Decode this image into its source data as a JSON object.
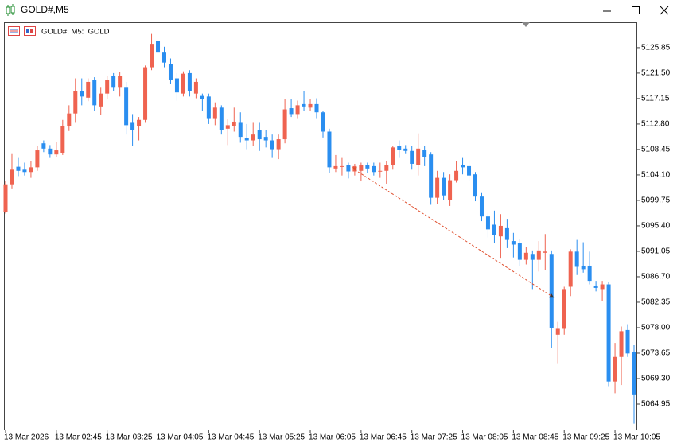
{
  "window": {
    "title": "GOLD#,M5"
  },
  "chart_data": {
    "type": "candlestick",
    "legend": "GOLD#, M5:  GOLD",
    "categories": [
      "13 Mar 2026",
      null,
      null,
      null,
      null,
      null,
      null,
      null,
      "13 Mar 02:45",
      null,
      null,
      null,
      null,
      null,
      null,
      null,
      "13 Mar 03:25",
      null,
      null,
      null,
      null,
      null,
      null,
      null,
      "13 Mar 04:05",
      null,
      null,
      null,
      null,
      null,
      null,
      null,
      "13 Mar 04:45",
      null,
      null,
      null,
      null,
      null,
      null,
      null,
      "13 Mar 05:25",
      null,
      null,
      null,
      null,
      null,
      null,
      null,
      "13 Mar 06:05",
      null,
      null,
      null,
      null,
      null,
      null,
      null,
      "13 Mar 06:45",
      null,
      null,
      null,
      null,
      null,
      null,
      null,
      "13 Mar 07:25",
      null,
      null,
      null,
      null,
      null,
      null,
      null,
      "13 Mar 08:05",
      null,
      null,
      null,
      null,
      null,
      null,
      null,
      "13 Mar 08:45",
      null,
      null,
      null,
      null,
      null,
      null,
      null,
      "13 Mar 09:25",
      null,
      null,
      null,
      null,
      null,
      null,
      null,
      "13 Mar 10:05",
      null,
      null,
      null
    ],
    "open": [
      5097.7,
      5102.5,
      5105.5,
      5105.0,
      5104.6,
      5105.4,
      5109.5,
      5108.6,
      5107.6,
      5107.9,
      5112.4,
      5114.6,
      5118.4,
      5117.3,
      5120.4,
      5115.8,
      5118.0,
      5121.0,
      5119.0,
      5119.0,
      5113.0,
      5112.5,
      5113.5,
      5122.5,
      5127.0,
      5125.0,
      5123.0,
      5120.6,
      5118.0,
      5121.5,
      5118.0,
      5117.6,
      5117.5,
      5113.8,
      5115.6,
      5112.0,
      5112.4,
      5113.0,
      5110.4,
      5110.0,
      5111.8,
      5110.6,
      5110.0,
      5108.5,
      5110.2,
      5115.5,
      5114.5,
      5116.2,
      5115.6,
      5116.2,
      5114.8,
      5111.5,
      5105.2,
      5105.5,
      5105.8,
      5104.7,
      5104.8,
      5105.8,
      5105.6,
      5104.8,
      5104.8,
      5105.8,
      5109.0,
      5108.6,
      5108.2,
      5105.8,
      5108.4,
      5107.6,
      5100.2,
      5103.6,
      5099.8,
      5103.2,
      5105.8,
      5105.6,
      5104.2,
      5100.4,
      5097.0,
      5095.6,
      5093.6,
      5095.0,
      5092.8,
      5092.4,
      5089.6,
      5090.6,
      5089.6,
      5090.8,
      5090.6,
      5076.8,
      5077.8,
      5085.0,
      5091.0,
      5088.6,
      5088.6,
      5085.2,
      5084.6,
      5085.4,
      5068.8,
      5073.0,
      5077.6,
      5073.8
    ],
    "high": [
      5103.0,
      5107.8,
      5107.0,
      5106.2,
      5106.5,
      5109.0,
      5110.0,
      5109.2,
      5109.8,
      5113.5,
      5116.0,
      5120.6,
      5120.6,
      5120.6,
      5120.8,
      5119.0,
      5121.0,
      5121.5,
      5121.7,
      5120.0,
      5114.5,
      5114.0,
      5122.8,
      5128.2,
      5127.6,
      5126.0,
      5124.0,
      5121.5,
      5121.8,
      5122.0,
      5120.6,
      5118.0,
      5118.0,
      5116.5,
      5116.0,
      5113.6,
      5115.6,
      5114.8,
      5112.8,
      5113.0,
      5113.0,
      5111.8,
      5111.0,
      5111.0,
      5117.0,
      5117.0,
      5116.8,
      5118.5,
      5117.0,
      5117.2,
      5115.0,
      5112.0,
      5107.5,
      5107.0,
      5106.2,
      5106.0,
      5106.2,
      5106.2,
      5106.2,
      5106.2,
      5106.4,
      5109.0,
      5110.0,
      5109.2,
      5109.0,
      5111.2,
      5109.0,
      5108.0,
      5104.8,
      5104.6,
      5104.2,
      5106.5,
      5107.0,
      5106.6,
      5104.6,
      5101.0,
      5097.6,
      5098.0,
      5097.4,
      5096.6,
      5094.2,
      5093.2,
      5091.8,
      5091.2,
      5092.8,
      5094.0,
      5091.2,
      5079.0,
      5085.0,
      5091.4,
      5093.0,
      5092.6,
      5091.0,
      5086.0,
      5086.0,
      5085.8,
      5075.4,
      5078.2,
      5078.6,
      5075.0
    ],
    "low": [
      5097.5,
      5101.8,
      5103.9,
      5104.0,
      5103.6,
      5104.8,
      5108.0,
      5107.0,
      5107.2,
      5107.5,
      5111.6,
      5113.0,
      5116.0,
      5116.7,
      5115.0,
      5114.3,
      5117.0,
      5118.5,
      5117.5,
      5111.0,
      5109.0,
      5110.0,
      5113.0,
      5122.0,
      5124.0,
      5122.5,
      5119.6,
      5116.8,
      5117.5,
      5117.5,
      5117.2,
      5115.0,
      5112.8,
      5112.6,
      5111.0,
      5109.2,
      5111.5,
      5109.6,
      5108.5,
      5109.0,
      5108.2,
      5108.8,
      5107.0,
      5106.8,
      5109.5,
      5114.0,
      5113.8,
      5115.0,
      5115.0,
      5113.8,
      5110.5,
      5104.5,
      5104.6,
      5104.0,
      5103.5,
      5104.0,
      5103.0,
      5104.4,
      5104.0,
      5103.6,
      5102.6,
      5105.0,
      5107.0,
      5107.8,
      5105.0,
      5104.0,
      5105.6,
      5099.0,
      5099.2,
      5099.8,
      5098.8,
      5102.8,
      5104.2,
      5103.0,
      5099.6,
      5096.2,
      5093.4,
      5092.4,
      5089.8,
      5091.6,
      5090.0,
      5088.5,
      5088.8,
      5084.6,
      5087.6,
      5087.8,
      5074.6,
      5071.8,
      5076.8,
      5083.4,
      5087.0,
      5087.4,
      5085.4,
      5084.2,
      5082.6,
      5068.0,
      5066.8,
      5068.2,
      5073.0,
      5061.6
    ],
    "close": [
      5102.5,
      5105.0,
      5104.8,
      5104.6,
      5105.4,
      5108.3,
      5108.6,
      5107.6,
      5108.3,
      5112.4,
      5114.6,
      5118.4,
      5117.5,
      5120.0,
      5116.0,
      5118.0,
      5120.4,
      5119.0,
      5121.0,
      5112.6,
      5111.8,
      5113.5,
      5122.5,
      5126.5,
      5125.0,
      5123.3,
      5120.4,
      5118.2,
      5121.4,
      5118.4,
      5120.0,
      5117.0,
      5113.8,
      5115.6,
      5111.8,
      5112.6,
      5113.2,
      5110.6,
      5110.0,
      5111.0,
      5110.2,
      5110.0,
      5108.5,
      5110.2,
      5115.3,
      5114.5,
      5116.0,
      5115.8,
      5116.2,
      5114.8,
      5111.5,
      5105.4,
      5105.6,
      5105.6,
      5104.7,
      5105.6,
      5105.8,
      5105.2,
      5104.6,
      5104.8,
      5105.8,
      5108.8,
      5108.4,
      5108.2,
      5106.0,
      5108.6,
      5107.2,
      5100.2,
      5103.6,
      5100.6,
      5103.2,
      5104.8,
      5105.4,
      5104.0,
      5100.4,
      5097.0,
      5094.8,
      5093.8,
      5095.4,
      5093.0,
      5092.2,
      5089.6,
      5090.8,
      5089.6,
      5091.2,
      5091.0,
      5078.0,
      5077.8,
      5084.6,
      5091.0,
      5088.4,
      5088.0,
      5086.0,
      5084.8,
      5085.4,
      5068.8,
      5073.0,
      5077.4,
      5073.6,
      5066.6
    ],
    "up_color": "#ef6350",
    "down_color": "#2a8ef0",
    "ylim": [
      5060.6,
      5130.05
    ],
    "yticks": [
      5125.85,
      {
        "value": 5121.5,
        "label": "5121.50"
      },
      5117.15,
      {
        "value": 5112.8,
        "label": "5112.80"
      },
      5108.45,
      {
        "value": 5104.1,
        "label": "5104.10"
      },
      5099.75,
      {
        "value": 5095.4,
        "label": "5095.40"
      },
      5091.05,
      {
        "value": 5086.7,
        "label": "5086.70"
      },
      5082.35,
      {
        "value": 5078.0,
        "label": "5078.00"
      },
      5073.65,
      {
        "value": 5069.3,
        "label": "5069.30"
      },
      5064.95
    ],
    "trade": {
      "entry_bar": 55,
      "entry_price": 5105.0,
      "exit_bar": 86,
      "exit_price": 5083.4,
      "color": "#e0502f"
    }
  }
}
